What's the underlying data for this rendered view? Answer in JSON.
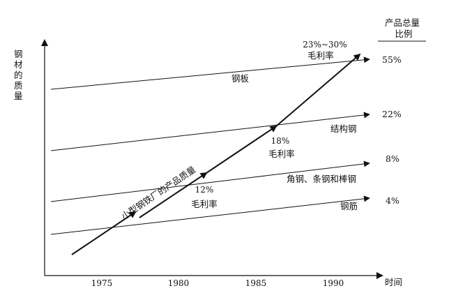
{
  "axes": {
    "y_label": "钢材的质量",
    "x_label": "时间",
    "x_ticks": [
      "1975",
      "1980",
      "1985",
      "1990"
    ]
  },
  "right_header": {
    "line1": "产品总量",
    "line2": "比例"
  },
  "lines": [
    {
      "label": "钢板",
      "share": "55%"
    },
    {
      "label": "结构钢",
      "share": "22%"
    },
    {
      "label": "角钢、条钢和棒钢",
      "share": "8%"
    },
    {
      "label": "钢筋",
      "share": "4%"
    }
  ],
  "diagonal": {
    "label": "小型钢铁厂的产品质量",
    "margin_notes": [
      {
        "pct": "12%",
        "text": "毛利率"
      },
      {
        "pct": "18%",
        "text": "毛利率"
      },
      {
        "pct": "23%~30%",
        "text": "毛利率"
      }
    ]
  },
  "colors": {
    "ink": "#111111",
    "background": "#ffffff"
  }
}
